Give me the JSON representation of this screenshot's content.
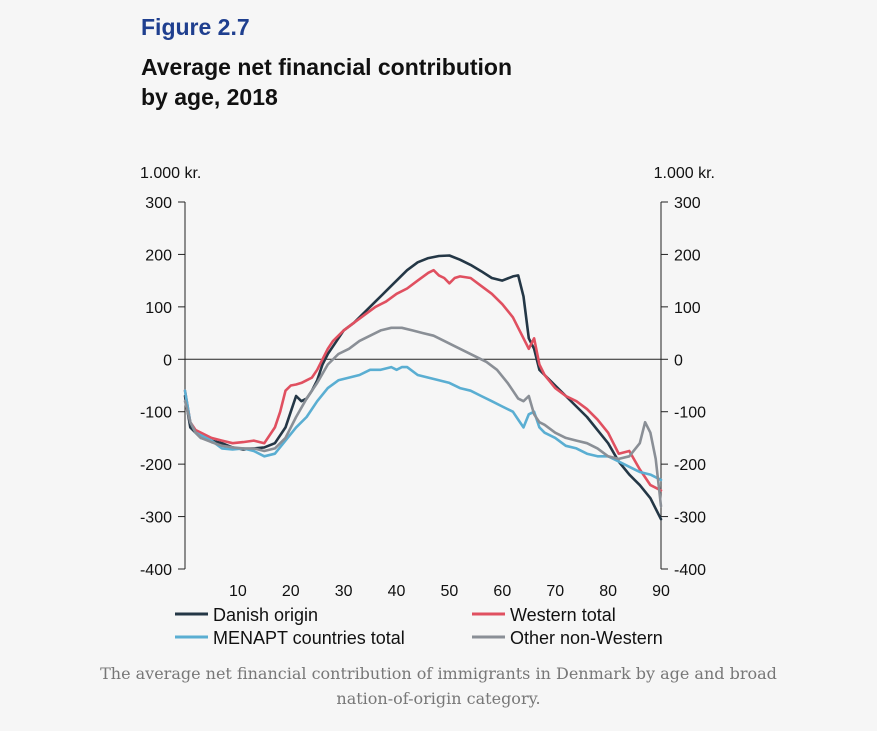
{
  "figure": {
    "label": "Figure 2.7",
    "title_line1": "Average net financial contribution",
    "title_line2": "by age, 2018"
  },
  "caption": {
    "line1": "The average net financial contribution of immigrants in Denmark by age and broad",
    "line2": "nation-of-origin category."
  },
  "chart_data": {
    "type": "line",
    "title": "Average net financial contribution by age, 2018",
    "xlabel": "",
    "ylabel_left": "1.000 kr.",
    "ylabel_right": "1.000 kr.",
    "xlim": [
      0,
      90
    ],
    "ylim": [
      -400,
      300
    ],
    "x_ticks": [
      10,
      20,
      30,
      40,
      50,
      60,
      70,
      80,
      90
    ],
    "y_ticks": [
      300,
      200,
      100,
      0,
      -100,
      -200,
      -300,
      -400
    ],
    "legend_position": "bottom",
    "series": [
      {
        "name": "Danish origin",
        "color": "#243746",
        "x": [
          0,
          1,
          2,
          3,
          5,
          7,
          9,
          11,
          13,
          15,
          17,
          19,
          20,
          21,
          22,
          23,
          24,
          25,
          26,
          27,
          28,
          29,
          30,
          32,
          34,
          36,
          38,
          40,
          42,
          44,
          46,
          48,
          50,
          52,
          54,
          56,
          58,
          60,
          62,
          63,
          64,
          65,
          66,
          67,
          68,
          70,
          72,
          74,
          76,
          78,
          80,
          82,
          84,
          86,
          88,
          90
        ],
        "values": [
          -70,
          -130,
          -140,
          -150,
          -155,
          -160,
          -168,
          -172,
          -170,
          -168,
          -160,
          -130,
          -100,
          -70,
          -80,
          -75,
          -60,
          -40,
          -10,
          10,
          25,
          40,
          55,
          70,
          90,
          110,
          130,
          150,
          170,
          185,
          193,
          197,
          198,
          190,
          180,
          168,
          155,
          150,
          158,
          160,
          120,
          40,
          20,
          -20,
          -30,
          -50,
          -70,
          -90,
          -110,
          -135,
          -160,
          -195,
          -220,
          -240,
          -265,
          -305
        ]
      },
      {
        "name": "Western total",
        "color": "#e05060",
        "x": [
          0,
          1,
          2,
          3,
          5,
          7,
          9,
          11,
          13,
          15,
          17,
          18,
          19,
          20,
          21,
          22,
          23,
          24,
          25,
          26,
          27,
          28,
          30,
          32,
          34,
          36,
          38,
          40,
          42,
          44,
          46,
          47,
          48,
          49,
          50,
          51,
          52,
          54,
          56,
          58,
          60,
          62,
          64,
          65,
          66,
          67,
          68,
          70,
          72,
          74,
          76,
          78,
          80,
          82,
          84,
          86,
          88,
          90
        ],
        "values": [
          -60,
          -120,
          -135,
          -140,
          -150,
          -155,
          -160,
          -158,
          -155,
          -160,
          -130,
          -100,
          -60,
          -50,
          -48,
          -45,
          -40,
          -35,
          -20,
          0,
          20,
          35,
          55,
          70,
          85,
          100,
          110,
          125,
          135,
          150,
          165,
          170,
          160,
          155,
          145,
          155,
          158,
          155,
          140,
          125,
          105,
          80,
          40,
          20,
          40,
          -10,
          -30,
          -55,
          -70,
          -80,
          -95,
          -115,
          -140,
          -180,
          -175,
          -210,
          -240,
          -250
        ]
      },
      {
        "name": "MENAPT countries total",
        "color": "#5aaed2",
        "x": [
          0,
          1,
          2,
          3,
          5,
          7,
          9,
          11,
          13,
          15,
          17,
          19,
          21,
          23,
          25,
          27,
          29,
          31,
          33,
          35,
          37,
          39,
          40,
          41,
          42,
          44,
          46,
          48,
          50,
          52,
          54,
          56,
          58,
          60,
          62,
          63,
          64,
          65,
          66,
          67,
          68,
          70,
          72,
          74,
          76,
          78,
          80,
          82,
          84,
          86,
          88,
          90
        ],
        "values": [
          -60,
          -120,
          -140,
          -145,
          -155,
          -170,
          -172,
          -170,
          -175,
          -185,
          -180,
          -155,
          -130,
          -110,
          -80,
          -55,
          -40,
          -35,
          -30,
          -20,
          -20,
          -15,
          -20,
          -15,
          -15,
          -30,
          -35,
          -40,
          -45,
          -55,
          -60,
          -70,
          -80,
          -90,
          -100,
          -115,
          -130,
          -105,
          -100,
          -130,
          -140,
          -150,
          -165,
          -170,
          -180,
          -185,
          -185,
          -195,
          -205,
          -215,
          -220,
          -230
        ]
      },
      {
        "name": "Other non-Western",
        "color": "#8a8f96",
        "x": [
          0,
          1,
          2,
          3,
          5,
          7,
          9,
          11,
          13,
          15,
          17,
          19,
          21,
          23,
          25,
          27,
          29,
          31,
          33,
          35,
          37,
          39,
          41,
          43,
          45,
          47,
          49,
          51,
          53,
          55,
          57,
          59,
          61,
          62,
          63,
          64,
          65,
          66,
          67,
          68,
          70,
          72,
          74,
          76,
          78,
          80,
          82,
          84,
          86,
          87,
          88,
          89,
          90
        ],
        "values": [
          -80,
          -120,
          -140,
          -150,
          -158,
          -165,
          -168,
          -170,
          -170,
          -175,
          -170,
          -150,
          -110,
          -75,
          -45,
          -10,
          10,
          20,
          35,
          45,
          55,
          60,
          60,
          55,
          50,
          45,
          35,
          25,
          15,
          5,
          -5,
          -20,
          -45,
          -60,
          -75,
          -80,
          -70,
          -105,
          -120,
          -125,
          -140,
          -150,
          -155,
          -160,
          -170,
          -185,
          -190,
          -185,
          -160,
          -120,
          -140,
          -190,
          -280
        ]
      }
    ]
  }
}
